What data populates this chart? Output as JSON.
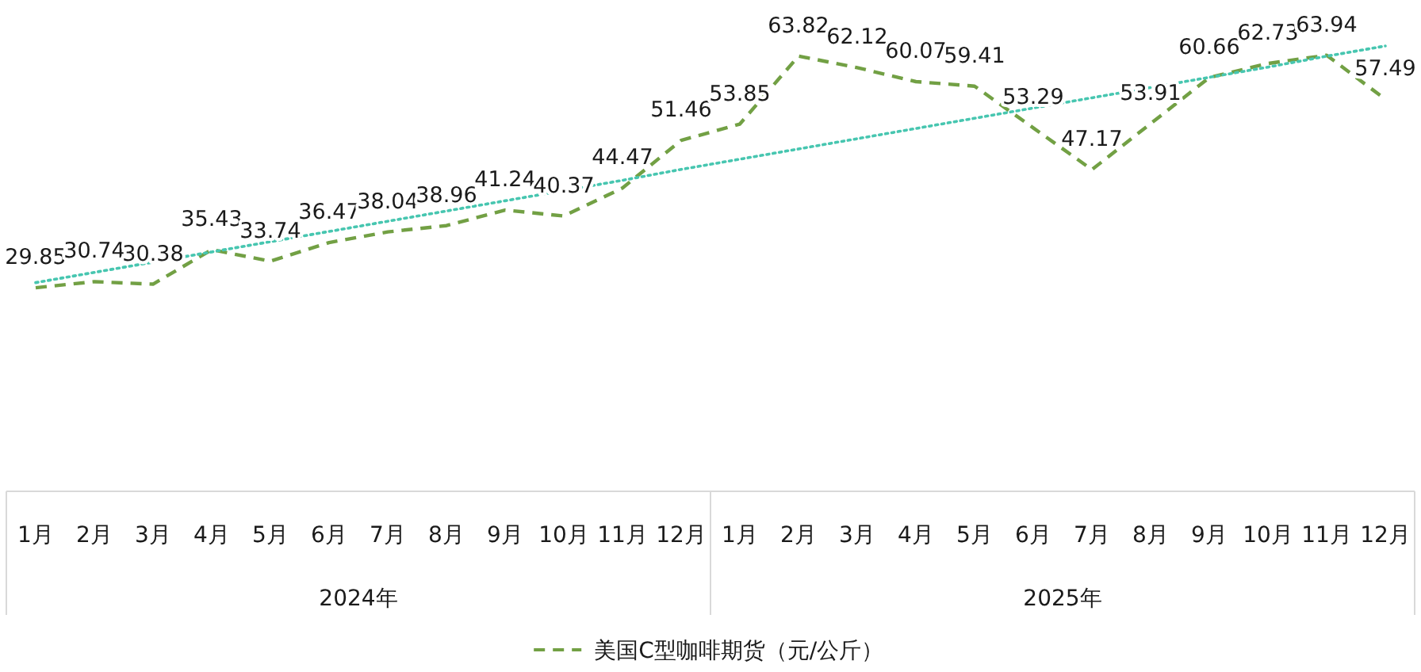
{
  "chart_data": {
    "type": "line",
    "categories": [
      "1月",
      "2月",
      "3月",
      "4月",
      "5月",
      "6月",
      "7月",
      "8月",
      "9月",
      "10月",
      "11月",
      "12月",
      "1月",
      "2月",
      "3月",
      "4月",
      "5月",
      "6月",
      "7月",
      "8月",
      "9月",
      "10月",
      "11月",
      "12月"
    ],
    "series": [
      {
        "name": "美国C型咖啡期货（元/公斤）",
        "color": "#72a044",
        "line_style": "dashed",
        "values": [
          29.85,
          30.74,
          30.38,
          35.43,
          33.74,
          36.47,
          38.04,
          38.96,
          41.24,
          40.37,
          44.47,
          51.46,
          53.85,
          63.82,
          62.12,
          60.07,
          59.41,
          53.29,
          47.17,
          53.91,
          60.66,
          62.73,
          63.94,
          57.49
        ],
        "value_labels": [
          "29.85",
          "30.74",
          "30.38",
          "35.43",
          "33.74",
          "36.47",
          "38.04",
          "38.96",
          "41.24",
          "40.37",
          "44.47",
          "51.46",
          "53.85",
          "63.82",
          "62.12",
          "60.07",
          "59.41",
          "53.29",
          "47.17",
          "53.91",
          "60.66",
          "62.73",
          "63.94",
          "57.49"
        ]
      },
      {
        "type": "line",
        "color": "#47c6b0",
        "line_style": "dotted",
        "values": [
          30.6,
          32.1,
          33.6,
          35.1,
          36.6,
          38.1,
          39.6,
          41.1,
          42.6,
          44.1,
          45.6,
          47.2,
          48.7,
          50.2,
          51.7,
          53.2,
          54.7,
          56.2,
          57.7,
          59.2,
          60.7,
          62.2,
          63.8,
          65.3
        ]
      }
    ],
    "tick_labels": "x",
    "legend": "bottom",
    "annotations": [
      "2024年",
      "2025年"
    ]
  }
}
